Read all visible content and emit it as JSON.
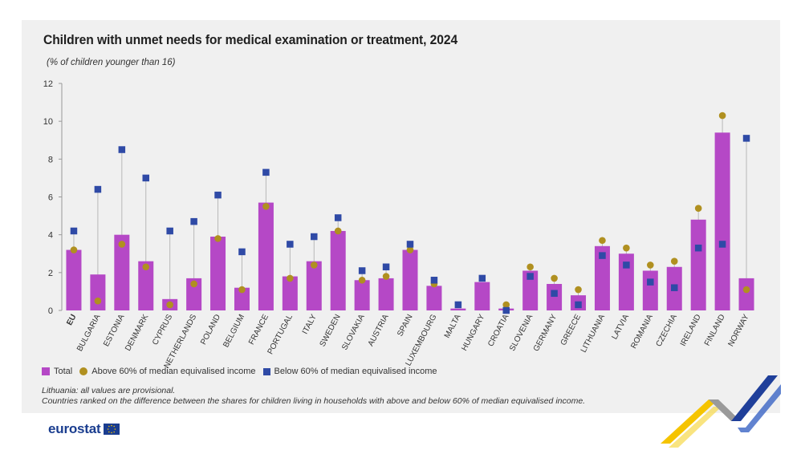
{
  "title": "Children with unmet needs for medical examination or treatment, 2024",
  "subtitle": "(% of children younger than 16)",
  "legend": {
    "total": "Total",
    "above": "Above 60% of median equivalised income",
    "below": "Below 60% of median equivalised income"
  },
  "notes": {
    "line1": "Lithuania: all values are provisional.",
    "line2": "Countries ranked on the difference between the shares for children living in households with above and below 60% of median equivalised income."
  },
  "logo": {
    "text": "eurostat"
  },
  "colors": {
    "total": "#b548c6",
    "above": "#b09020",
    "below": "#2f4aa6",
    "panel": "#f0f0f0"
  },
  "chart_data": {
    "type": "bar",
    "title": "Children with unmet needs for medical examination or treatment, 2024",
    "ylabel": "% of children younger than 16",
    "ylim": [
      0,
      12
    ],
    "yticks": [
      "0",
      "2",
      "4",
      "6",
      "8",
      "10",
      "12"
    ],
    "categories": [
      "EU",
      "BULGARIA",
      "ESTONIA",
      "DENMARK",
      "CYPRUS",
      "NETHERLANDS",
      "POLAND",
      "BELGIUM",
      "FRANCE",
      "PORTUGAL",
      "ITALY",
      "SWEDEN",
      "SLOVAKIA",
      "AUSTRIA",
      "SPAIN",
      "LUXEMBOURG",
      "MALTA",
      "HUNGARY",
      "CROATIA",
      "SLOVENIA",
      "GERMANY",
      "GREECE",
      "LITHUANIA",
      "LATVIA",
      "ROMANIA",
      "CZECHIA",
      "IRELAND",
      "FINLAND",
      "NORWAY"
    ],
    "series": [
      {
        "name": "Total",
        "kind": "bar",
        "values": [
          3.2,
          1.9,
          4.0,
          2.6,
          0.6,
          1.7,
          3.9,
          1.2,
          5.7,
          1.8,
          2.6,
          4.2,
          1.6,
          1.7,
          3.2,
          1.3,
          0.1,
          1.5,
          0.1,
          2.1,
          1.4,
          0.8,
          3.4,
          3.0,
          2.1,
          2.3,
          4.8,
          9.4,
          1.7
        ]
      },
      {
        "name": "Above 60% of median equivalised income",
        "kind": "dot",
        "values": [
          3.2,
          0.5,
          3.5,
          2.3,
          0.3,
          1.4,
          3.8,
          1.1,
          5.5,
          1.7,
          2.4,
          4.2,
          1.6,
          1.8,
          3.2,
          1.4,
          null,
          null,
          0.3,
          2.3,
          1.7,
          1.1,
          3.7,
          3.3,
          2.4,
          2.6,
          5.4,
          10.3,
          1.1
        ]
      },
      {
        "name": "Below 60% of median equivalised income",
        "kind": "square",
        "values": [
          4.2,
          6.4,
          8.5,
          7.0,
          4.2,
          4.7,
          6.1,
          3.1,
          7.3,
          3.5,
          3.9,
          4.9,
          2.1,
          2.3,
          3.5,
          1.6,
          0.3,
          1.7,
          0.0,
          1.8,
          0.9,
          0.3,
          2.9,
          2.4,
          1.5,
          1.2,
          3.3,
          3.5,
          9.1
        ]
      }
    ]
  }
}
